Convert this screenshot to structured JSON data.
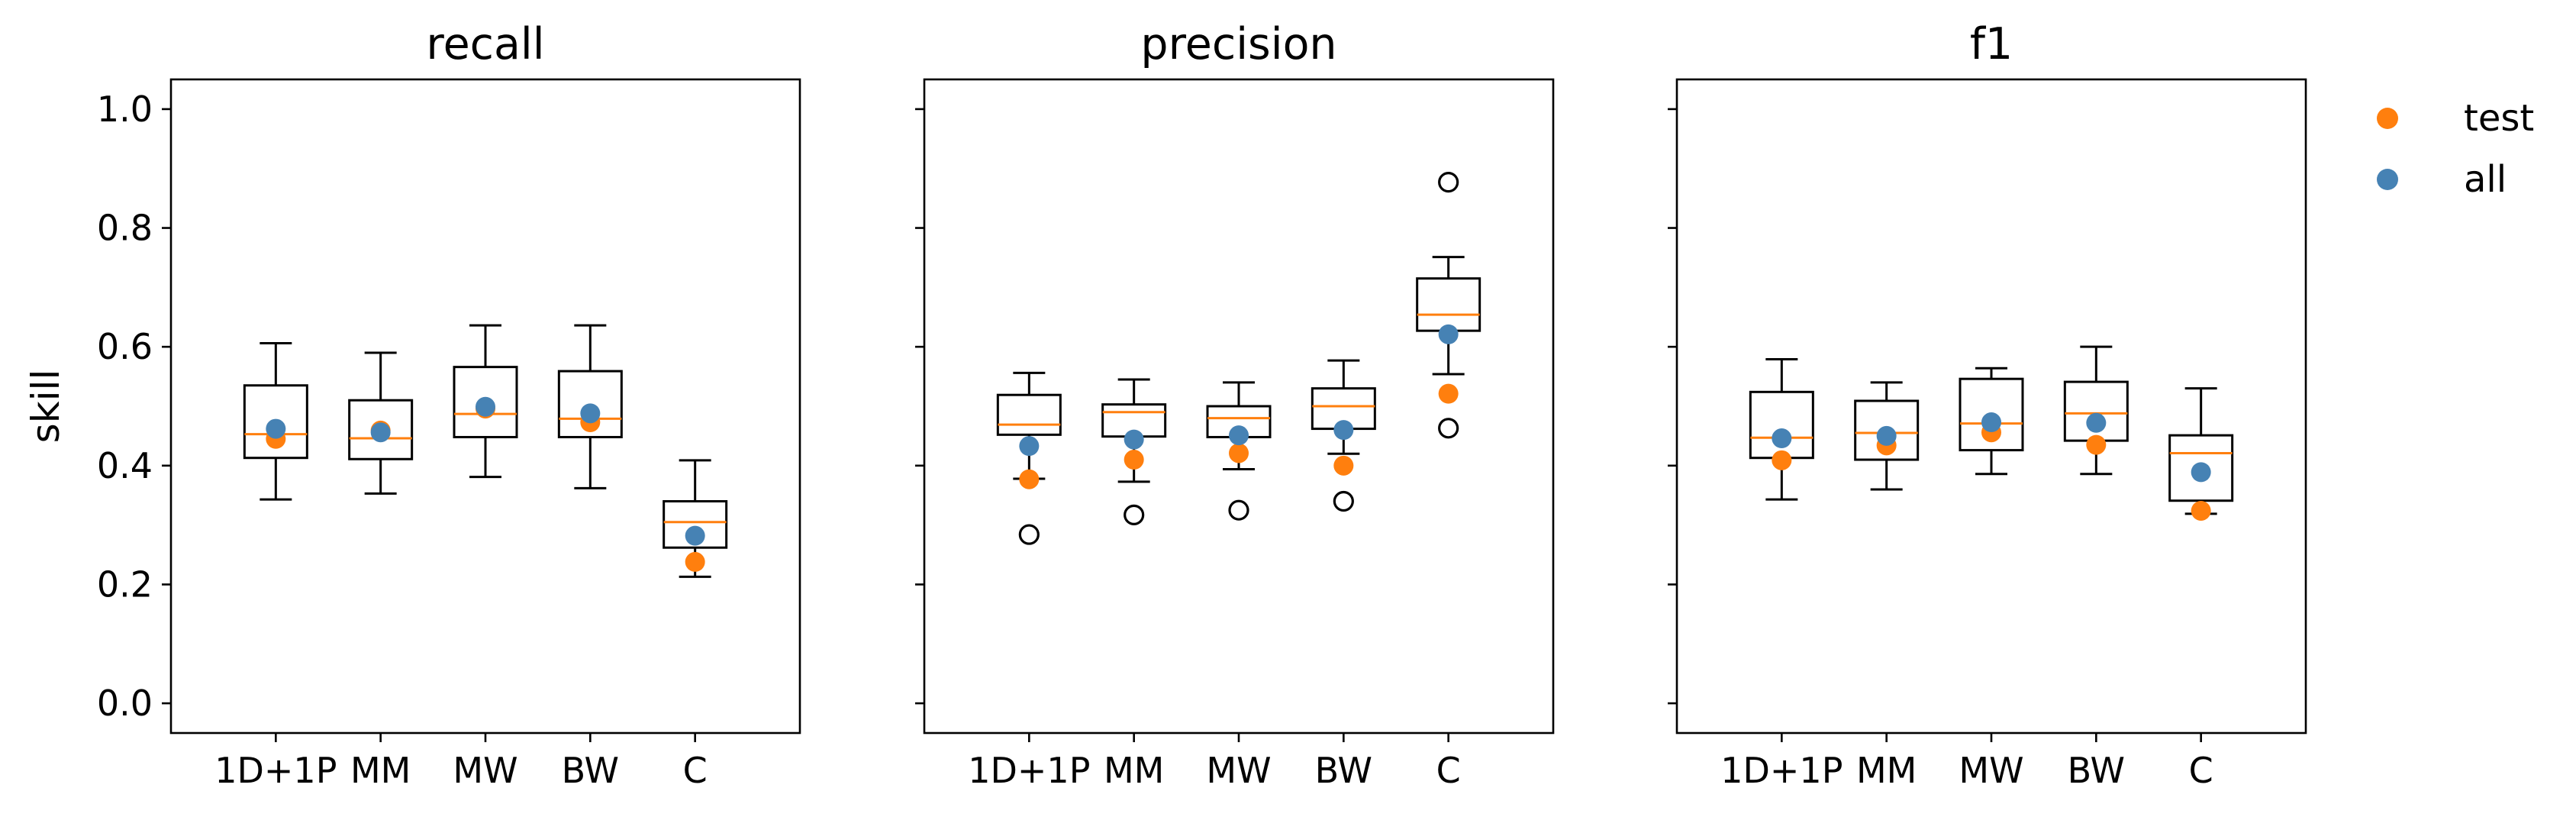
{
  "chart_data": {
    "type": "box",
    "ylabel": "skill",
    "ylim": [
      -0.05,
      1.05
    ],
    "yticks": [
      0.0,
      0.2,
      0.4,
      0.6,
      0.8,
      1.0
    ],
    "ytick_labels": [
      "0.0",
      "0.2",
      "0.4",
      "0.6",
      "0.8",
      "1.0"
    ],
    "categories": [
      "1D+1P",
      "MM",
      "MW",
      "BW",
      "C"
    ],
    "colors": {
      "test": "#ff7f0e",
      "all": "#4682b4",
      "median": "#ff7f0e"
    },
    "legend": {
      "position": "right, outside axes",
      "entries": [
        {
          "label": "test",
          "color": "#ff7f0e"
        },
        {
          "label": "all",
          "color": "#4682b4"
        }
      ]
    },
    "panels": [
      {
        "title": "recall",
        "show_ylabel": true,
        "boxes": [
          {
            "category": "1D+1P",
            "whislo": 0.343,
            "q1": 0.413,
            "med": 0.453,
            "q3": 0.535,
            "whishi": 0.606,
            "fliers": [],
            "test": 0.445,
            "all": 0.462
          },
          {
            "category": "MM",
            "whislo": 0.353,
            "q1": 0.411,
            "med": 0.446,
            "q3": 0.51,
            "whishi": 0.59,
            "fliers": [],
            "test": 0.459,
            "all": 0.456
          },
          {
            "category": "MW",
            "whislo": 0.381,
            "q1": 0.448,
            "med": 0.487,
            "q3": 0.566,
            "whishi": 0.636,
            "fliers": [],
            "test": 0.496,
            "all": 0.499
          },
          {
            "category": "BW",
            "whislo": 0.362,
            "q1": 0.448,
            "med": 0.479,
            "q3": 0.559,
            "whishi": 0.636,
            "fliers": [],
            "test": 0.473,
            "all": 0.488
          },
          {
            "category": "C",
            "whislo": 0.213,
            "q1": 0.262,
            "med": 0.305,
            "q3": 0.34,
            "whishi": 0.409,
            "fliers": [],
            "test": 0.238,
            "all": 0.282
          }
        ]
      },
      {
        "title": "precision",
        "show_ylabel": false,
        "boxes": [
          {
            "category": "1D+1P",
            "whislo": 0.378,
            "q1": 0.452,
            "med": 0.469,
            "q3": 0.519,
            "whishi": 0.556,
            "fliers": [
              0.284
            ],
            "test": 0.377,
            "all": 0.433
          },
          {
            "category": "MM",
            "whislo": 0.373,
            "q1": 0.449,
            "med": 0.49,
            "q3": 0.503,
            "whishi": 0.545,
            "fliers": [
              0.317
            ],
            "test": 0.41,
            "all": 0.444
          },
          {
            "category": "MW",
            "whislo": 0.394,
            "q1": 0.448,
            "med": 0.48,
            "q3": 0.5,
            "whishi": 0.54,
            "fliers": [
              0.325
            ],
            "test": 0.421,
            "all": 0.451
          },
          {
            "category": "BW",
            "whislo": 0.42,
            "q1": 0.462,
            "med": 0.5,
            "q3": 0.53,
            "whishi": 0.577,
            "fliers": [
              0.34
            ],
            "test": 0.4,
            "all": 0.46
          },
          {
            "category": "C",
            "whislo": 0.554,
            "q1": 0.627,
            "med": 0.654,
            "q3": 0.715,
            "whishi": 0.751,
            "fliers": [
              0.877,
              0.463
            ],
            "test": 0.521,
            "all": 0.621
          }
        ]
      },
      {
        "title": "f1",
        "show_ylabel": false,
        "boxes": [
          {
            "category": "1D+1P",
            "whislo": 0.343,
            "q1": 0.413,
            "med": 0.447,
            "q3": 0.524,
            "whishi": 0.579,
            "fliers": [],
            "test": 0.409,
            "all": 0.446
          },
          {
            "category": "MM",
            "whislo": 0.36,
            "q1": 0.41,
            "med": 0.455,
            "q3": 0.509,
            "whishi": 0.54,
            "fliers": [],
            "test": 0.434,
            "all": 0.45
          },
          {
            "category": "MW",
            "whislo": 0.386,
            "q1": 0.426,
            "med": 0.471,
            "q3": 0.546,
            "whishi": 0.564,
            "fliers": [],
            "test": 0.456,
            "all": 0.473
          },
          {
            "category": "BW",
            "whislo": 0.386,
            "q1": 0.442,
            "med": 0.488,
            "q3": 0.541,
            "whishi": 0.6,
            "fliers": [],
            "test": 0.435,
            "all": 0.472
          },
          {
            "category": "C",
            "whislo": 0.319,
            "q1": 0.341,
            "med": 0.421,
            "q3": 0.451,
            "whishi": 0.53,
            "fliers": [],
            "test": 0.324,
            "all": 0.389
          }
        ]
      }
    ]
  }
}
